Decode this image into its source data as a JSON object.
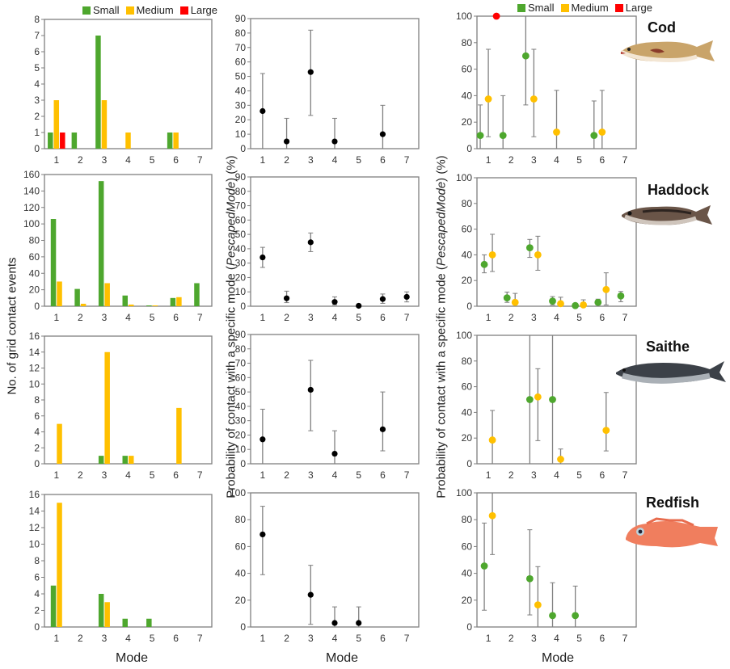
{
  "legend": {
    "items": [
      {
        "label": "Small",
        "color": "#4ea72e"
      },
      {
        "label": "Medium",
        "color": "#ffc000"
      },
      {
        "label": "Large",
        "color": "#ff0000"
      }
    ]
  },
  "labels": {
    "left_ylabel": "No. of grid contact events",
    "mid_ylabel_pre": "Probability of contact with a specific mode (",
    "mid_ylabel_italic": "PescapedMode",
    "mid_ylabel_post": ") (%)",
    "xlabel": "Mode"
  },
  "species": [
    "Cod",
    "Haddock",
    "Saithe",
    "Redfish"
  ],
  "chart_data": [
    {
      "id": "cod-counts",
      "type": "bar",
      "title": "",
      "xlabel": "",
      "ylabel": "No. of grid contact events",
      "categories": [
        "1",
        "2",
        "3",
        "4",
        "5",
        "6",
        "7"
      ],
      "ylim": [
        0,
        8
      ],
      "yticks": [
        0,
        1,
        2,
        3,
        4,
        5,
        6,
        7,
        8
      ],
      "series": [
        {
          "name": "Small",
          "values": [
            1,
            1,
            7,
            0,
            0,
            1,
            0
          ]
        },
        {
          "name": "Medium",
          "values": [
            3,
            0,
            3,
            1,
            0,
            1,
            0
          ]
        },
        {
          "name": "Large",
          "values": [
            1,
            0,
            0,
            0,
            0,
            0,
            0
          ]
        }
      ]
    },
    {
      "id": "haddock-counts",
      "type": "bar",
      "title": "",
      "xlabel": "",
      "ylabel": "No. of grid contact events",
      "categories": [
        "1",
        "2",
        "3",
        "4",
        "5",
        "6",
        "7"
      ],
      "ylim": [
        0,
        160
      ],
      "yticks": [
        0,
        20,
        40,
        60,
        80,
        100,
        120,
        140,
        160
      ],
      "series": [
        {
          "name": "Small",
          "values": [
            106,
            21,
            152,
            13,
            1,
            10,
            28
          ]
        },
        {
          "name": "Medium",
          "values": [
            30,
            3,
            28,
            2,
            1,
            11,
            0
          ]
        }
      ]
    },
    {
      "id": "saithe-counts",
      "type": "bar",
      "title": "",
      "xlabel": "",
      "ylabel": "No. of grid contact events",
      "categories": [
        "1",
        "2",
        "3",
        "4",
        "5",
        "6",
        "7"
      ],
      "ylim": [
        0,
        16
      ],
      "yticks": [
        0,
        2,
        4,
        6,
        8,
        10,
        12,
        14,
        16
      ],
      "series": [
        {
          "name": "Small",
          "values": [
            0,
            0,
            1,
            1,
            0,
            0,
            0
          ]
        },
        {
          "name": "Medium",
          "values": [
            5,
            0,
            14,
            1,
            0,
            7,
            0
          ]
        }
      ]
    },
    {
      "id": "redfish-counts",
      "type": "bar",
      "title": "",
      "xlabel": "Mode",
      "ylabel": "No. of grid contact events",
      "categories": [
        "1",
        "2",
        "3",
        "4",
        "5",
        "6",
        "7"
      ],
      "ylim": [
        0,
        16
      ],
      "yticks": [
        0,
        2,
        4,
        6,
        8,
        10,
        12,
        14,
        16
      ],
      "series": [
        {
          "name": "Small",
          "values": [
            5,
            0,
            4,
            1,
            1,
            0,
            0
          ]
        },
        {
          "name": "Medium",
          "values": [
            15,
            0,
            3,
            0,
            0,
            0,
            0
          ]
        }
      ]
    },
    {
      "id": "cod-prob",
      "type": "scatter",
      "xlabel": "",
      "ylabel": "Probability (%)",
      "categories": [
        "1",
        "2",
        "3",
        "4",
        "5",
        "6",
        "7"
      ],
      "ylim": [
        0,
        90
      ],
      "yticks": [
        0,
        10,
        20,
        30,
        40,
        50,
        60,
        70,
        80,
        90
      ],
      "series": [
        {
          "name": "All",
          "points": [
            {
              "x": 1,
              "y": 26,
              "lo": 0,
              "hi": 52
            },
            {
              "x": 2,
              "y": 5,
              "lo": 0,
              "hi": 21
            },
            {
              "x": 3,
              "y": 53,
              "lo": 23,
              "hi": 82
            },
            {
              "x": 4,
              "y": 5,
              "lo": 0,
              "hi": 21
            },
            {
              "x": 6,
              "y": 10,
              "lo": 0,
              "hi": 30
            }
          ]
        }
      ]
    },
    {
      "id": "haddock-prob",
      "type": "scatter",
      "xlabel": "",
      "ylabel": "Probability (%)",
      "categories": [
        "1",
        "2",
        "3",
        "4",
        "5",
        "6",
        "7"
      ],
      "ylim": [
        0,
        90
      ],
      "yticks": [
        0,
        10,
        20,
        30,
        40,
        50,
        60,
        70,
        80,
        90
      ],
      "series": [
        {
          "name": "All",
          "points": [
            {
              "x": 1,
              "y": 34,
              "lo": 27,
              "hi": 41
            },
            {
              "x": 2,
              "y": 5.5,
              "lo": 2.5,
              "hi": 10.5
            },
            {
              "x": 3,
              "y": 44.5,
              "lo": 38,
              "hi": 51
            },
            {
              "x": 4,
              "y": 3,
              "lo": 1,
              "hi": 6.5
            },
            {
              "x": 5,
              "y": 0.3,
              "lo": 0,
              "hi": 1
            },
            {
              "x": 6,
              "y": 5,
              "lo": 2,
              "hi": 8.5
            },
            {
              "x": 7,
              "y": 6.5,
              "lo": 3,
              "hi": 10
            }
          ]
        }
      ]
    },
    {
      "id": "saithe-prob",
      "type": "scatter",
      "xlabel": "",
      "ylabel": "Probability (%)",
      "categories": [
        "1",
        "2",
        "3",
        "4",
        "5",
        "6",
        "7"
      ],
      "ylim": [
        0,
        90
      ],
      "yticks": [
        0,
        10,
        20,
        30,
        40,
        50,
        60,
        70,
        80,
        90
      ],
      "series": [
        {
          "name": "All",
          "points": [
            {
              "x": 1,
              "y": 17,
              "lo": 0,
              "hi": 38
            },
            {
              "x": 3,
              "y": 51.5,
              "lo": 23,
              "hi": 72
            },
            {
              "x": 4,
              "y": 7,
              "lo": 0,
              "hi": 23
            },
            {
              "x": 6,
              "y": 24,
              "lo": 9,
              "hi": 50
            }
          ]
        }
      ]
    },
    {
      "id": "redfish-prob",
      "type": "scatter",
      "xlabel": "Mode",
      "ylabel": "Probability (%)",
      "categories": [
        "1",
        "2",
        "3",
        "4",
        "5",
        "6",
        "7"
      ],
      "ylim": [
        0,
        100
      ],
      "yticks": [
        0,
        20,
        40,
        60,
        80,
        100
      ],
      "series": [
        {
          "name": "All",
          "points": [
            {
              "x": 1,
              "y": 69,
              "lo": 39,
              "hi": 90
            },
            {
              "x": 3,
              "y": 24,
              "lo": 2,
              "hi": 46
            },
            {
              "x": 4,
              "y": 3,
              "lo": 0,
              "hi": 15
            },
            {
              "x": 5,
              "y": 3,
              "lo": 0,
              "hi": 15
            }
          ]
        }
      ]
    },
    {
      "id": "cod-size-prob",
      "type": "scatter",
      "xlabel": "",
      "ylabel": "Probability (%)",
      "categories": [
        "1",
        "2",
        "3",
        "4",
        "5",
        "6",
        "7"
      ],
      "ylim": [
        0,
        100
      ],
      "yticks": [
        0,
        20,
        40,
        60,
        80,
        100
      ],
      "series": [
        {
          "name": "Small",
          "points": [
            {
              "x": 1,
              "y": 10,
              "lo": 0,
              "hi": 33
            },
            {
              "x": 2,
              "y": 10,
              "lo": 0,
              "hi": 40
            },
            {
              "x": 3,
              "y": 70,
              "lo": 33,
              "hi": 100
            },
            {
              "x": 6,
              "y": 10,
              "lo": 0,
              "hi": 36
            }
          ]
        },
        {
          "name": "Medium",
          "points": [
            {
              "x": 1,
              "y": 37.5,
              "lo": 9,
              "hi": 75
            },
            {
              "x": 3,
              "y": 37.5,
              "lo": 9,
              "hi": 75
            },
            {
              "x": 4,
              "y": 12.5,
              "lo": 0,
              "hi": 44
            },
            {
              "x": 6,
              "y": 12.5,
              "lo": 0,
              "hi": 44
            }
          ]
        },
        {
          "name": "Large",
          "points": [
            {
              "x": 1,
              "y": 100,
              "lo": 100,
              "hi": 100
            }
          ]
        }
      ]
    },
    {
      "id": "haddock-size-prob",
      "type": "scatter",
      "xlabel": "",
      "ylabel": "Probability (%)",
      "categories": [
        "1",
        "2",
        "3",
        "4",
        "5",
        "6",
        "7"
      ],
      "ylim": [
        0,
        100
      ],
      "yticks": [
        0,
        20,
        40,
        60,
        80,
        100
      ],
      "series": [
        {
          "name": "Small",
          "points": [
            {
              "x": 1,
              "y": 32.5,
              "lo": 26,
              "hi": 40
            },
            {
              "x": 2,
              "y": 6.5,
              "lo": 3,
              "hi": 11
            },
            {
              "x": 3,
              "y": 45.5,
              "lo": 38,
              "hi": 52
            },
            {
              "x": 4,
              "y": 4,
              "lo": 1,
              "hi": 7.5
            },
            {
              "x": 5,
              "y": 0.5,
              "lo": 0,
              "hi": 1
            },
            {
              "x": 6,
              "y": 3,
              "lo": 1,
              "hi": 5.5
            },
            {
              "x": 7,
              "y": 8,
              "lo": 3.5,
              "hi": 11.5
            }
          ]
        },
        {
          "name": "Medium",
          "points": [
            {
              "x": 1,
              "y": 40,
              "lo": 27,
              "hi": 56
            },
            {
              "x": 2,
              "y": 3,
              "lo": 0,
              "hi": 10
            },
            {
              "x": 3,
              "y": 40,
              "lo": 28,
              "hi": 54.5
            },
            {
              "x": 4,
              "y": 2,
              "lo": 0,
              "hi": 7
            },
            {
              "x": 5,
              "y": 1,
              "lo": 0,
              "hi": 5
            },
            {
              "x": 6,
              "y": 13,
              "lo": 1,
              "hi": 26
            }
          ]
        }
      ]
    },
    {
      "id": "saithe-size-prob",
      "type": "scatter",
      "xlabel": "",
      "ylabel": "Probability (%)",
      "categories": [
        "1",
        "2",
        "3",
        "4",
        "5",
        "6",
        "7"
      ],
      "ylim": [
        0,
        100
      ],
      "yticks": [
        0,
        20,
        40,
        60,
        80,
        100
      ],
      "series": [
        {
          "name": "Small",
          "points": [
            {
              "x": 3,
              "y": 50,
              "lo": 0,
              "hi": 100
            },
            {
              "x": 4,
              "y": 50,
              "lo": 0,
              "hi": 100
            }
          ]
        },
        {
          "name": "Medium",
          "points": [
            {
              "x": 1,
              "y": 18.5,
              "lo": 0,
              "hi": 41.5
            },
            {
              "x": 3,
              "y": 52,
              "lo": 18,
              "hi": 74
            },
            {
              "x": 4,
              "y": 3.5,
              "lo": 0,
              "hi": 11.5
            },
            {
              "x": 6,
              "y": 26,
              "lo": 10,
              "hi": 55.5
            }
          ]
        }
      ]
    },
    {
      "id": "redfish-size-prob",
      "type": "scatter",
      "xlabel": "Mode",
      "ylabel": "Probability (%)",
      "categories": [
        "1",
        "2",
        "3",
        "4",
        "5",
        "6",
        "7"
      ],
      "ylim": [
        0,
        100
      ],
      "yticks": [
        0,
        20,
        40,
        60,
        80,
        100
      ],
      "series": [
        {
          "name": "Small",
          "points": [
            {
              "x": 1,
              "y": 45.5,
              "lo": 12.5,
              "hi": 77.5
            },
            {
              "x": 3,
              "y": 36,
              "lo": 9,
              "hi": 72.5
            },
            {
              "x": 4,
              "y": 8.5,
              "lo": 0,
              "hi": 33
            },
            {
              "x": 5,
              "y": 8.5,
              "lo": 0,
              "hi": 30.5
            }
          ]
        },
        {
          "name": "Medium",
          "points": [
            {
              "x": 1,
              "y": 83,
              "lo": 54,
              "hi": 100
            },
            {
              "x": 3,
              "y": 16.5,
              "lo": 0,
              "hi": 45
            }
          ]
        }
      ]
    }
  ]
}
